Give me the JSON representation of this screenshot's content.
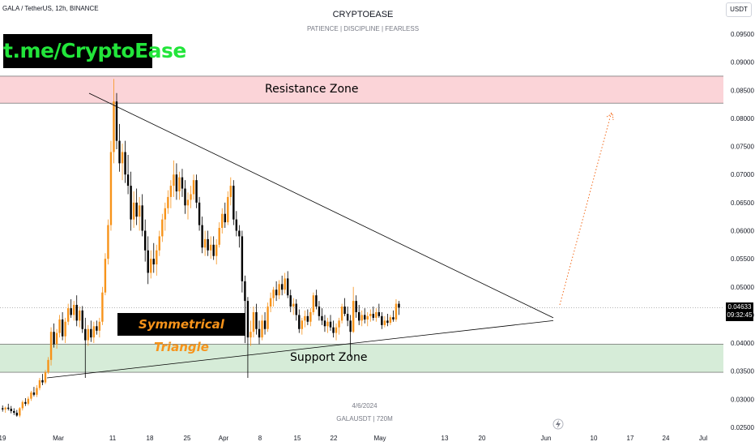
{
  "header": {
    "symbol_line": "GALA / TetherUS, 12h, BINANCE",
    "title": "CRYPTOEASE",
    "subtitle": "PATIENCE | DISCIPLINE | FEARLESS",
    "currency": "USDT"
  },
  "annotations": {
    "telegram": "t.me/CryptoEase",
    "resistance": "Resistance Zone",
    "support": "Support Zone",
    "pattern": "Symmetrical Triangle"
  },
  "footer": {
    "date": "4/6/2024",
    "symbol": "GALAUSDT | 720M"
  },
  "price_tag": {
    "value": "0.04633",
    "countdown": "09:32:45"
  },
  "colors": {
    "up": "#f7931a",
    "down": "#000000",
    "resistance_fill": "#fbd4d8",
    "support_fill": "#d6ecd8",
    "projection": "#f26a1b"
  },
  "chart_data": {
    "type": "candlestick",
    "interval": "12h",
    "ylim": [
      0.024,
      0.1
    ],
    "yticks": [
      "0.09500",
      "0.09000",
      "0.08500",
      "0.08000",
      "0.07500",
      "0.07000",
      "0.06500",
      "0.06000",
      "0.05500",
      "0.05000",
      "0.04500",
      "0.04000",
      "0.03500",
      "0.03000",
      "0.02500"
    ],
    "xticks": [
      "19",
      "Mar",
      "11",
      "18",
      "25",
      "Apr",
      "8",
      "15",
      "22",
      "May",
      "13",
      "20",
      "Jun",
      "10",
      "17",
      "24",
      "Jul"
    ],
    "resistance_zone": [
      0.0827,
      0.0875
    ],
    "support_zone": [
      0.0348,
      0.0398
    ],
    "descending_trendline": {
      "from": [
        "Mar 10",
        0.0845
      ],
      "to": [
        "Jun 2",
        0.0445
      ]
    },
    "ascending_trendline": {
      "from": [
        "Feb 27",
        0.0338
      ],
      "to": [
        "Jun 2",
        0.044
      ]
    },
    "projection": {
      "from": 0.0468,
      "to": 0.0812
    },
    "ohlc": [
      [
        0.0284,
        0.0289,
        0.0278,
        0.0282
      ],
      [
        0.0282,
        0.0287,
        0.0276,
        0.0285
      ],
      [
        0.0285,
        0.0292,
        0.028,
        0.0283
      ],
      [
        0.0283,
        0.0288,
        0.0275,
        0.0279
      ],
      [
        0.0279,
        0.0284,
        0.0272,
        0.0276
      ],
      [
        0.0276,
        0.0281,
        0.0269,
        0.0271
      ],
      [
        0.0271,
        0.0286,
        0.0268,
        0.0284
      ],
      [
        0.0284,
        0.0298,
        0.028,
        0.0295
      ],
      [
        0.0295,
        0.0302,
        0.0288,
        0.0292
      ],
      [
        0.0292,
        0.0305,
        0.0289,
        0.0301
      ],
      [
        0.0301,
        0.0315,
        0.0297,
        0.0312
      ],
      [
        0.0312,
        0.0322,
        0.0305,
        0.0308
      ],
      [
        0.0308,
        0.0325,
        0.0304,
        0.032
      ],
      [
        0.032,
        0.0338,
        0.0316,
        0.0334
      ],
      [
        0.0334,
        0.0345,
        0.0325,
        0.033
      ],
      [
        0.033,
        0.0352,
        0.0327,
        0.0348
      ],
      [
        0.0348,
        0.0375,
        0.0345,
        0.037
      ],
      [
        0.037,
        0.0428,
        0.036,
        0.042
      ],
      [
        0.042,
        0.0435,
        0.0392,
        0.0398
      ],
      [
        0.0398,
        0.0425,
        0.039,
        0.0418
      ],
      [
        0.0418,
        0.045,
        0.041,
        0.0442
      ],
      [
        0.0442,
        0.0455,
        0.0405,
        0.0412
      ],
      [
        0.0412,
        0.0445,
        0.04,
        0.0438
      ],
      [
        0.0438,
        0.047,
        0.0432,
        0.0462
      ],
      [
        0.0462,
        0.0478,
        0.0445,
        0.045
      ],
      [
        0.045,
        0.0475,
        0.044,
        0.0468
      ],
      [
        0.0468,
        0.0485,
        0.043,
        0.044
      ],
      [
        0.044,
        0.0465,
        0.0428,
        0.0458
      ],
      [
        0.0458,
        0.0466,
        0.0418,
        0.0425
      ],
      [
        0.0425,
        0.0445,
        0.0338,
        0.0405
      ],
      [
        0.0405,
        0.0432,
        0.0395,
        0.0425
      ],
      [
        0.0425,
        0.044,
        0.0402,
        0.041
      ],
      [
        0.041,
        0.0438,
        0.04,
        0.043
      ],
      [
        0.043,
        0.044,
        0.0415,
        0.0422
      ],
      [
        0.0422,
        0.0445,
        0.041,
        0.0438
      ],
      [
        0.0438,
        0.05,
        0.0432,
        0.049
      ],
      [
        0.049,
        0.056,
        0.0485,
        0.055
      ],
      [
        0.055,
        0.062,
        0.054,
        0.061
      ],
      [
        0.061,
        0.076,
        0.06,
        0.074
      ],
      [
        0.074,
        0.087,
        0.072,
        0.083
      ],
      [
        0.083,
        0.0845,
        0.0745,
        0.076
      ],
      [
        0.076,
        0.079,
        0.0705,
        0.072
      ],
      [
        0.072,
        0.0755,
        0.069,
        0.074
      ],
      [
        0.074,
        0.076,
        0.0685,
        0.07
      ],
      [
        0.07,
        0.0735,
        0.0665,
        0.068
      ],
      [
        0.068,
        0.0705,
        0.06,
        0.062
      ],
      [
        0.062,
        0.067,
        0.0605,
        0.065
      ],
      [
        0.065,
        0.0675,
        0.061,
        0.0625
      ],
      [
        0.0625,
        0.066,
        0.06,
        0.0645
      ],
      [
        0.0645,
        0.0665,
        0.059,
        0.06
      ],
      [
        0.06,
        0.062,
        0.0545,
        0.0565
      ],
      [
        0.0565,
        0.059,
        0.0505,
        0.0525
      ],
      [
        0.0525,
        0.0565,
        0.0515,
        0.055
      ],
      [
        0.055,
        0.0578,
        0.0525,
        0.054
      ],
      [
        0.054,
        0.0575,
        0.052,
        0.0565
      ],
      [
        0.0565,
        0.06,
        0.0555,
        0.059
      ],
      [
        0.059,
        0.063,
        0.058,
        0.062
      ],
      [
        0.062,
        0.065,
        0.06,
        0.064
      ],
      [
        0.064,
        0.0672,
        0.063,
        0.066
      ],
      [
        0.066,
        0.069,
        0.064,
        0.068
      ],
      [
        0.068,
        0.0725,
        0.066,
        0.07
      ],
      [
        0.07,
        0.072,
        0.0655,
        0.067
      ],
      [
        0.067,
        0.0705,
        0.0655,
        0.0695
      ],
      [
        0.0695,
        0.071,
        0.066,
        0.0675
      ],
      [
        0.0675,
        0.069,
        0.063,
        0.0645
      ],
      [
        0.0645,
        0.0668,
        0.062,
        0.0655
      ],
      [
        0.0655,
        0.068,
        0.064,
        0.0665
      ],
      [
        0.0665,
        0.07,
        0.0655,
        0.069
      ],
      [
        0.069,
        0.07,
        0.064,
        0.065
      ],
      [
        0.065,
        0.066,
        0.06,
        0.061
      ],
      [
        0.061,
        0.0625,
        0.056,
        0.057
      ],
      [
        0.057,
        0.06,
        0.0555,
        0.0585
      ],
      [
        0.0585,
        0.06,
        0.0555,
        0.0565
      ],
      [
        0.0565,
        0.059,
        0.055,
        0.0575
      ],
      [
        0.0575,
        0.059,
        0.0548,
        0.0555
      ],
      [
        0.0555,
        0.0585,
        0.054,
        0.0575
      ],
      [
        0.0575,
        0.0615,
        0.057,
        0.0605
      ],
      [
        0.0605,
        0.064,
        0.0595,
        0.063
      ],
      [
        0.063,
        0.065,
        0.0605,
        0.0615
      ],
      [
        0.0615,
        0.067,
        0.061,
        0.066
      ],
      [
        0.066,
        0.0695,
        0.0645,
        0.068
      ],
      [
        0.068,
        0.069,
        0.061,
        0.062
      ],
      [
        0.062,
        0.0635,
        0.059,
        0.06
      ],
      [
        0.06,
        0.061,
        0.057,
        0.059
      ],
      [
        0.059,
        0.06,
        0.049,
        0.051
      ],
      [
        0.051,
        0.052,
        0.04,
        0.0475
      ],
      [
        0.0475,
        0.0482,
        0.0338,
        0.041
      ],
      [
        0.041,
        0.044,
        0.0395,
        0.042
      ],
      [
        0.042,
        0.0465,
        0.041,
        0.0455
      ],
      [
        0.0455,
        0.047,
        0.0415,
        0.0425
      ],
      [
        0.0425,
        0.044,
        0.0398,
        0.041
      ],
      [
        0.041,
        0.045,
        0.0405,
        0.044
      ],
      [
        0.044,
        0.0455,
        0.0415,
        0.0425
      ],
      [
        0.0425,
        0.0472,
        0.042,
        0.0465
      ],
      [
        0.0465,
        0.049,
        0.0455,
        0.048
      ],
      [
        0.048,
        0.05,
        0.0465,
        0.0495
      ],
      [
        0.0495,
        0.051,
        0.0475,
        0.0485
      ],
      [
        0.0485,
        0.0512,
        0.0478,
        0.0505
      ],
      [
        0.0505,
        0.052,
        0.0485,
        0.0495
      ],
      [
        0.0495,
        0.0525,
        0.0488,
        0.0515
      ],
      [
        0.0515,
        0.0528,
        0.048,
        0.0485
      ],
      [
        0.0485,
        0.0495,
        0.0455,
        0.0465
      ],
      [
        0.0465,
        0.048,
        0.045,
        0.047
      ],
      [
        0.047,
        0.0478,
        0.044,
        0.045
      ],
      [
        0.045,
        0.046,
        0.0418,
        0.0425
      ],
      [
        0.0425,
        0.0445,
        0.0415,
        0.044
      ],
      [
        0.044,
        0.0458,
        0.0428,
        0.0448
      ],
      [
        0.0448,
        0.046,
        0.0432,
        0.0438
      ],
      [
        0.0438,
        0.0462,
        0.043,
        0.0455
      ],
      [
        0.0455,
        0.049,
        0.045,
        0.0485
      ],
      [
        0.0485,
        0.0495,
        0.046,
        0.0465
      ],
      [
        0.0465,
        0.0475,
        0.044,
        0.0448
      ],
      [
        0.0448,
        0.0462,
        0.0432,
        0.044
      ],
      [
        0.044,
        0.045,
        0.042,
        0.043
      ],
      [
        0.043,
        0.0445,
        0.0418,
        0.0438
      ],
      [
        0.0438,
        0.045,
        0.0422,
        0.0428
      ],
      [
        0.0428,
        0.044,
        0.041,
        0.0418
      ],
      [
        0.0418,
        0.0435,
        0.0405,
        0.0428
      ],
      [
        0.0428,
        0.0445,
        0.0415,
        0.044
      ],
      [
        0.044,
        0.047,
        0.0435,
        0.0465
      ],
      [
        0.0465,
        0.048,
        0.0448,
        0.0452
      ],
      [
        0.0452,
        0.0465,
        0.043,
        0.044
      ],
      [
        0.044,
        0.045,
        0.0375,
        0.042
      ],
      [
        0.042,
        0.05,
        0.0418,
        0.0475
      ],
      [
        0.0475,
        0.0485,
        0.0445,
        0.0455
      ],
      [
        0.0455,
        0.0468,
        0.0432,
        0.044
      ],
      [
        0.044,
        0.0458,
        0.043,
        0.045
      ],
      [
        0.045,
        0.0462,
        0.0435,
        0.0442
      ],
      [
        0.0442,
        0.0455,
        0.043,
        0.0448
      ],
      [
        0.0448,
        0.046,
        0.0438,
        0.0452
      ],
      [
        0.0452,
        0.0465,
        0.044,
        0.0445
      ],
      [
        0.0445,
        0.0462,
        0.0438,
        0.0455
      ],
      [
        0.0455,
        0.047,
        0.0445,
        0.0448
      ],
      [
        0.0448,
        0.0455,
        0.0425,
        0.0432
      ],
      [
        0.0432,
        0.0448,
        0.0428,
        0.044
      ],
      [
        0.044,
        0.0452,
        0.043,
        0.0436
      ],
      [
        0.0436,
        0.045,
        0.0432,
        0.0446
      ],
      [
        0.0446,
        0.0458,
        0.0438,
        0.0442
      ],
      [
        0.0442,
        0.0478,
        0.0438,
        0.047
      ],
      [
        0.047,
        0.0475,
        0.045,
        0.0463
      ]
    ]
  }
}
